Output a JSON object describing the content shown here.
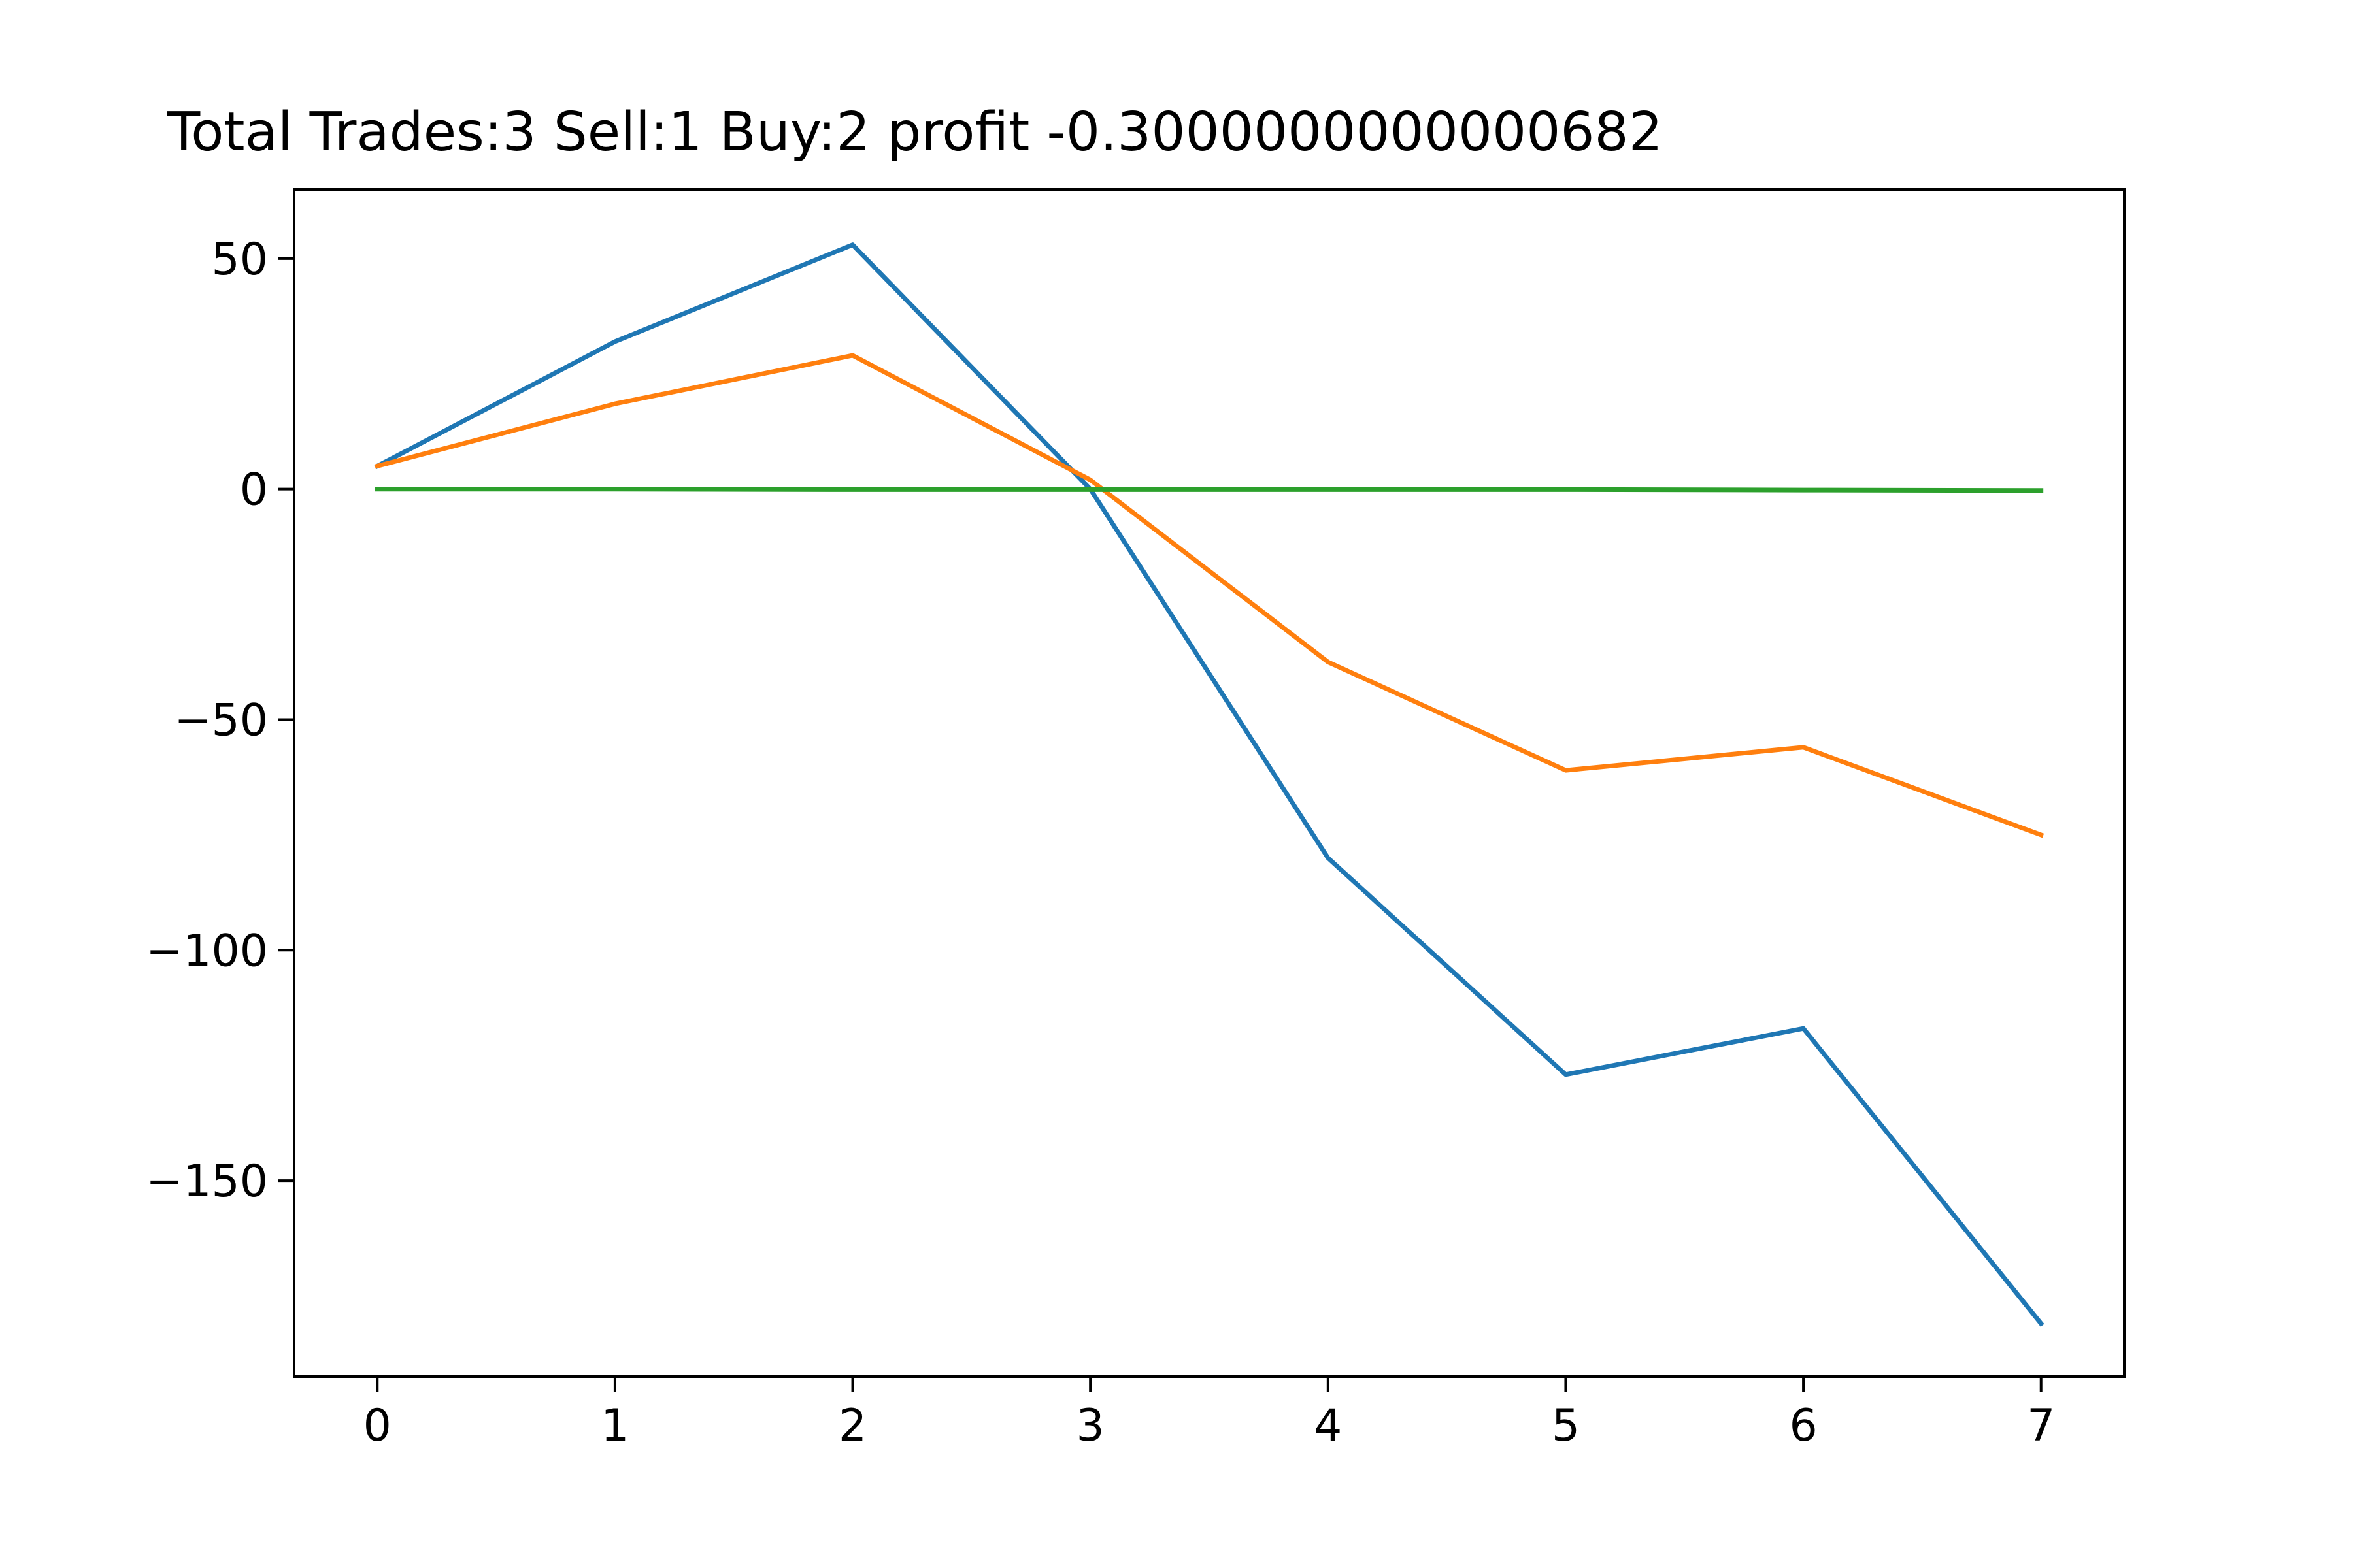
{
  "chart_data": {
    "type": "line",
    "title": "Total Trades:3 Sell:1 Buy:2 profit -0.3000000000000682",
    "xlabel": "",
    "ylabel": "",
    "x": [
      0,
      1,
      2,
      3,
      4,
      5,
      6,
      7
    ],
    "xlim": [
      -0.35,
      7.35
    ],
    "ylim": [
      -192.5,
      65
    ],
    "x_ticks": [
      "0",
      "1",
      "2",
      "3",
      "4",
      "5",
      "6",
      "7"
    ],
    "y_ticks": [
      {
        "value": 50,
        "label": "50"
      },
      {
        "value": 0,
        "label": "0"
      },
      {
        "value": -50,
        "label": "−50"
      },
      {
        "value": -100,
        "label": "−100"
      },
      {
        "value": -150,
        "label": "−150"
      }
    ],
    "grid": false,
    "legend": "none",
    "series": [
      {
        "color": "#1f77b4",
        "values": [
          5,
          32,
          53,
          0,
          -80,
          -127,
          -117,
          -181
        ]
      },
      {
        "color": "#ff7f0e",
        "values": [
          5,
          18.5,
          29,
          2,
          -37.5,
          -61,
          -56,
          -75
        ]
      },
      {
        "color": "#2ca02c",
        "values": [
          0,
          0,
          -0.1,
          -0.1,
          -0.1,
          -0.1,
          -0.2,
          -0.3
        ]
      }
    ]
  }
}
